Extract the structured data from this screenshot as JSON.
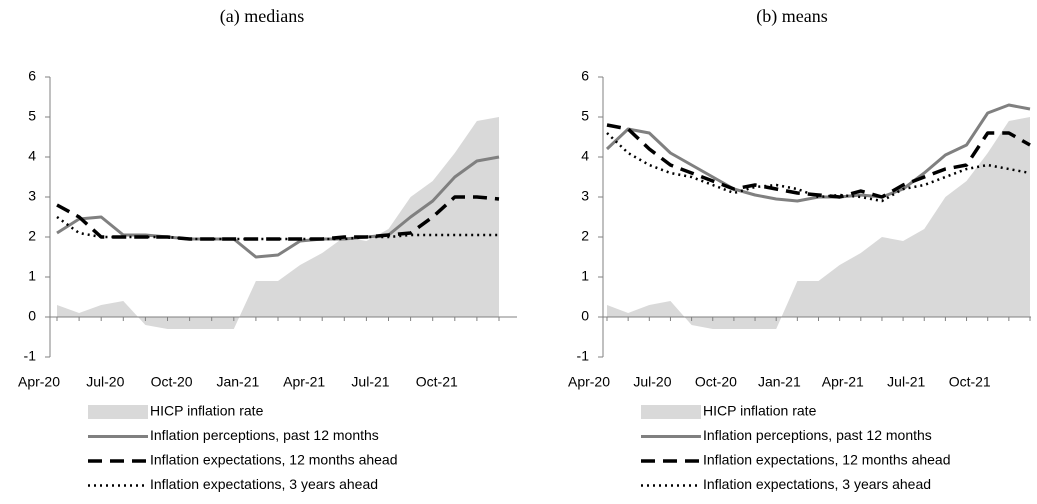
{
  "chart_data": [
    {
      "type": "line",
      "title": "(a) medians",
      "categories": [
        "Apr-20",
        null,
        null,
        "Jul-20",
        null,
        null,
        "Oct-20",
        null,
        null,
        "Jan-21",
        null,
        null,
        "Apr-21",
        null,
        null,
        "Jul-21",
        null,
        null,
        "Oct-21",
        null,
        null
      ],
      "ylim": [
        -1,
        6
      ],
      "yticks": [
        -1,
        0,
        1,
        2,
        3,
        4,
        5,
        6
      ],
      "series": [
        {
          "name": "HICP inflation rate",
          "color": "#d9d9d9",
          "style": "area",
          "values": [
            0.3,
            0.1,
            0.3,
            0.4,
            -0.2,
            -0.3,
            -0.3,
            -0.3,
            -0.3,
            0.9,
            0.9,
            1.3,
            1.6,
            2.0,
            1.9,
            2.2,
            3.0,
            3.4,
            4.1,
            4.9,
            5.0
          ]
        },
        {
          "name": "Inflation perceptions, past 12 months",
          "color": "#808080",
          "style": "solid",
          "values": [
            2.1,
            2.45,
            2.5,
            2.05,
            2.05,
            2.0,
            1.95,
            1.95,
            1.95,
            1.5,
            1.55,
            1.9,
            1.95,
            1.95,
            2.0,
            2.05,
            2.5,
            2.9,
            3.5,
            3.9,
            4.0
          ]
        },
        {
          "name": "Inflation expectations, 12 months ahead",
          "color": "#000000",
          "style": "dashed",
          "values": [
            2.8,
            2.5,
            2.0,
            2.0,
            2.0,
            2.0,
            1.95,
            1.95,
            1.95,
            1.95,
            1.95,
            1.95,
            1.95,
            2.0,
            2.0,
            2.05,
            2.1,
            2.5,
            3.0,
            3.0,
            2.95
          ]
        },
        {
          "name": "Inflation expectations, 3 years ahead",
          "color": "#000000",
          "style": "dotted",
          "values": [
            2.5,
            2.1,
            2.0,
            2.0,
            2.0,
            2.0,
            1.95,
            1.95,
            1.95,
            1.95,
            1.95,
            1.95,
            1.95,
            1.95,
            2.0,
            2.0,
            2.05,
            2.05,
            2.05,
            2.05,
            2.05
          ]
        }
      ]
    },
    {
      "type": "line",
      "title": "(b) means",
      "categories": [
        "Apr-20",
        null,
        null,
        "Jul-20",
        null,
        null,
        "Oct-20",
        null,
        null,
        "Jan-21",
        null,
        null,
        "Apr-21",
        null,
        null,
        "Jul-21",
        null,
        null,
        "Oct-21",
        null,
        null
      ],
      "ylim": [
        -1,
        6
      ],
      "yticks": [
        -1,
        0,
        1,
        2,
        3,
        4,
        5,
        6
      ],
      "series": [
        {
          "name": "HICP inflation rate",
          "color": "#d9d9d9",
          "style": "area",
          "values": [
            0.3,
            0.1,
            0.3,
            0.4,
            -0.2,
            -0.3,
            -0.3,
            -0.3,
            -0.3,
            0.9,
            0.9,
            1.3,
            1.6,
            2.0,
            1.9,
            2.2,
            3.0,
            3.4,
            4.1,
            4.9,
            5.0
          ]
        },
        {
          "name": "Inflation perceptions, past 12 months",
          "color": "#808080",
          "style": "solid",
          "values": [
            4.2,
            4.7,
            4.6,
            4.1,
            3.8,
            3.5,
            3.2,
            3.05,
            2.95,
            2.9,
            3.0,
            3.0,
            3.05,
            3.0,
            3.2,
            3.6,
            4.05,
            4.3,
            5.1,
            5.3,
            5.2
          ]
        },
        {
          "name": "Inflation expectations, 12 months ahead",
          "color": "#000000",
          "style": "dashed",
          "values": [
            4.8,
            4.7,
            4.2,
            3.8,
            3.6,
            3.4,
            3.2,
            3.3,
            3.2,
            3.1,
            3.05,
            3.0,
            3.15,
            3.0,
            3.3,
            3.5,
            3.7,
            3.8,
            4.6,
            4.6,
            4.3
          ]
        },
        {
          "name": "Inflation expectations, 3 years ahead",
          "color": "#000000",
          "style": "dotted",
          "values": [
            4.6,
            4.1,
            3.8,
            3.6,
            3.5,
            3.3,
            3.1,
            3.25,
            3.3,
            3.2,
            3.0,
            3.05,
            3.0,
            2.9,
            3.2,
            3.3,
            3.5,
            3.7,
            3.8,
            3.7,
            3.6
          ]
        }
      ]
    }
  ]
}
